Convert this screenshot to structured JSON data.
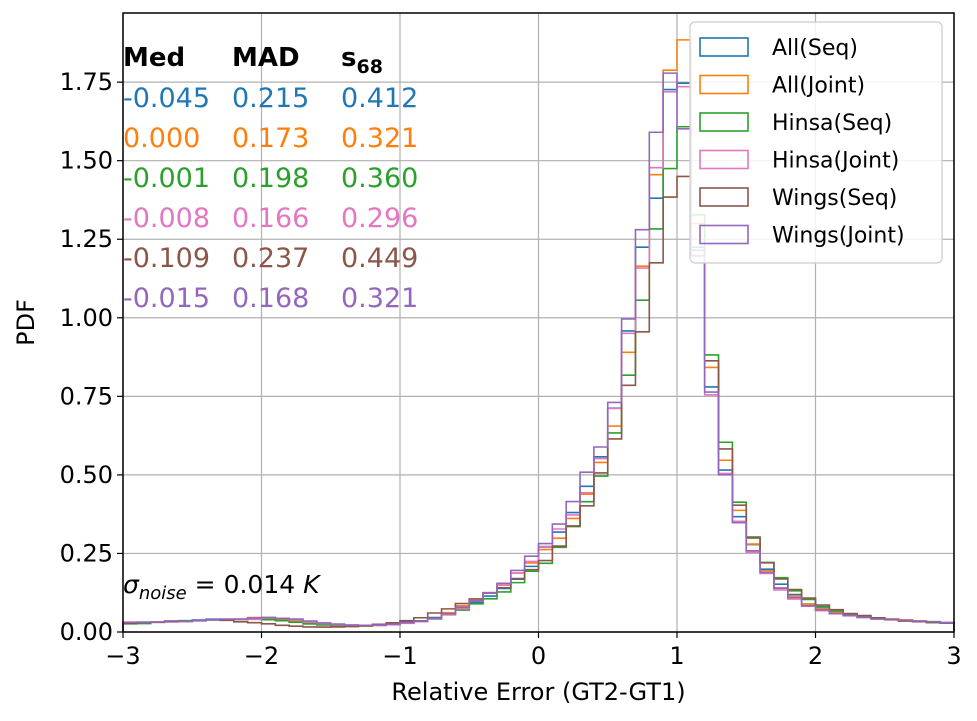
{
  "chart_data": {
    "type": "histogram",
    "xlabel": "Relative Error (GT2-GT1)",
    "ylabel": "PDF",
    "xlim": [
      -3,
      3
    ],
    "ylim": [
      0,
      1.97
    ],
    "x_ticks": [
      -3,
      -2,
      -1,
      0,
      1,
      2,
      3
    ],
    "x_tick_labels": [
      "−3",
      "−2",
      "−1",
      "0",
      "1",
      "2",
      "3"
    ],
    "y_ticks": [
      0,
      0.25,
      0.5,
      0.75,
      1.0,
      1.25,
      1.5,
      1.75
    ],
    "y_tick_labels": [
      "0.00",
      "0.25",
      "0.50",
      "0.75",
      "1.00",
      "1.25",
      "1.50",
      "1.75"
    ],
    "grid": true,
    "legend_position": "top-right",
    "bins": {
      "start": -3,
      "end": 3,
      "width": 0.1
    },
    "base_profile": [
      0.03,
      0.03,
      0.032,
      0.034,
      0.036,
      0.038,
      0.04,
      0.04,
      0.042,
      0.045,
      0.045,
      0.04,
      0.035,
      0.03,
      0.025,
      0.022,
      0.02,
      0.02,
      0.022,
      0.025,
      0.03,
      0.035,
      0.045,
      0.06,
      0.08,
      0.1,
      0.12,
      0.15,
      0.18,
      0.22,
      0.26,
      0.31,
      0.38,
      0.46,
      0.56,
      0.7,
      0.92,
      1.18,
      1.45,
      1.78,
      1.82,
      1.25,
      0.82,
      0.55,
      0.38,
      0.27,
      0.2,
      0.15,
      0.12,
      0.09,
      0.075,
      0.065,
      0.055,
      0.05,
      0.045,
      0.04,
      0.038,
      0.035,
      0.032,
      0.03,
      0.028,
      0.026,
      0.025,
      0.024,
      0.023,
      0.022,
      0.02,
      0.02,
      0.019,
      0.018,
      0.018,
      0.017,
      0.016,
      0.016,
      0.015,
      0.015,
      0.014,
      0.014,
      0.013,
      0.013,
      0.012,
      0.012,
      0.011,
      0.011,
      0.01,
      0.01,
      0.01,
      0.009,
      0.009,
      0.009
    ],
    "series": [
      {
        "name": "All(Seq)",
        "color": "#1f77b4",
        "peak": 1.79,
        "shift": 0.0,
        "scale": 1.0,
        "median": "-0.045",
        "mad": "0.215",
        "s68": "0.412"
      },
      {
        "name": "All(Joint)",
        "color": "#ff7f0e",
        "peak": 1.8,
        "shift": 0.0,
        "scale": 1.0,
        "median": "0.000",
        "mad": "0.173",
        "s68": "0.321"
      },
      {
        "name": "Hinsa(Seq)",
        "color": "#2ca02c",
        "peak": 1.68,
        "shift": 0.02,
        "scale": 1.02,
        "median": "-0.001",
        "mad": "0.198",
        "s68": "0.360"
      },
      {
        "name": "Hinsa(Joint)",
        "color": "#e377c2",
        "peak": 1.82,
        "shift": 0.0,
        "scale": 0.98,
        "median": "-0.008",
        "mad": "0.166",
        "s68": "0.296"
      },
      {
        "name": "Wings(Seq)",
        "color": "#8c564b",
        "peak": 1.48,
        "shift": -0.08,
        "scale": 1.12,
        "median": "-0.109",
        "mad": "0.237",
        "s68": "0.449"
      },
      {
        "name": "Wings(Joint)",
        "color": "#9467bd",
        "peak": 1.89,
        "shift": 0.0,
        "scale": 0.97,
        "median": "-0.015",
        "mad": "0.168",
        "s68": "0.321"
      }
    ],
    "stats_headers": {
      "median": "Med",
      "mad": "MAD",
      "s68": "s",
      "s68_sub": "68"
    },
    "annotation": {
      "sigma": "σ",
      "sub": "noise",
      "rest": " = 0.014 ",
      "unit": "K"
    }
  }
}
